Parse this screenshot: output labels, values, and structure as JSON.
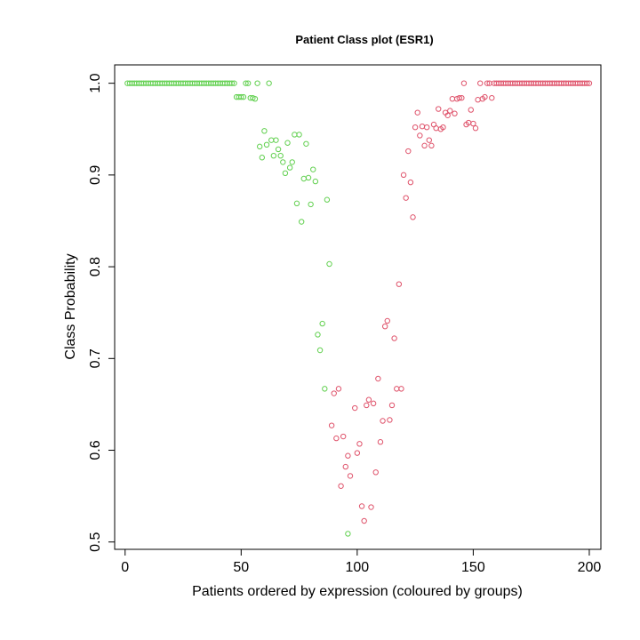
{
  "chart_data": {
    "type": "scatter",
    "title": "Patient Class plot (ESR1)",
    "xlabel": "Patients ordered by expression (coloured by groups)",
    "ylabel": "Class Probability",
    "xlim": [
      -4.5,
      205
    ],
    "ylim": [
      0.492,
      1.02
    ],
    "xticks": [
      0,
      50,
      100,
      150,
      200
    ],
    "yticks": [
      0.5,
      0.6,
      0.7,
      0.8,
      0.9,
      1.0
    ],
    "xtick_labels": [
      "0",
      "50",
      "100",
      "150",
      "200"
    ],
    "ytick_labels": [
      "0.5",
      "0.6",
      "0.7",
      "0.8",
      "0.9",
      "1.0"
    ],
    "grid": false,
    "legend": "none",
    "colors": {
      "group1": "#61D04F",
      "group2": "#DF536B"
    },
    "series": [
      {
        "color": "#61D04F",
        "points": [
          [
            1,
            1.0
          ],
          [
            2,
            1.0
          ],
          [
            3,
            1.0
          ],
          [
            4,
            1.0
          ],
          [
            5,
            1.0
          ],
          [
            6,
            1.0
          ],
          [
            7,
            1.0
          ],
          [
            8,
            1.0
          ],
          [
            9,
            1.0
          ],
          [
            10,
            1.0
          ],
          [
            11,
            1.0
          ],
          [
            12,
            1.0
          ],
          [
            13,
            1.0
          ],
          [
            14,
            1.0
          ],
          [
            15,
            1.0
          ],
          [
            16,
            1.0
          ],
          [
            17,
            1.0
          ],
          [
            18,
            1.0
          ],
          [
            19,
            1.0
          ],
          [
            20,
            1.0
          ],
          [
            21,
            1.0
          ],
          [
            22,
            1.0
          ],
          [
            23,
            1.0
          ],
          [
            24,
            1.0
          ],
          [
            25,
            1.0
          ],
          [
            26,
            1.0
          ],
          [
            27,
            1.0
          ],
          [
            28,
            1.0
          ],
          [
            29,
            1.0
          ],
          [
            30,
            1.0
          ],
          [
            31,
            1.0
          ],
          [
            32,
            1.0
          ],
          [
            33,
            1.0
          ],
          [
            34,
            1.0
          ],
          [
            35,
            1.0
          ],
          [
            36,
            1.0
          ],
          [
            37,
            1.0
          ],
          [
            38,
            1.0
          ],
          [
            39,
            1.0
          ],
          [
            40,
            1.0
          ],
          [
            41,
            1.0
          ],
          [
            42,
            1.0
          ],
          [
            43,
            1.0
          ],
          [
            44,
            1.0
          ],
          [
            45,
            1.0
          ],
          [
            46,
            1.0
          ],
          [
            47,
            1.0
          ],
          [
            48,
            0.985
          ],
          [
            49,
            0.985
          ],
          [
            50,
            0.985
          ],
          [
            51,
            0.985
          ],
          [
            52,
            1.0
          ],
          [
            53,
            1.0
          ],
          [
            54,
            0.984
          ],
          [
            55,
            0.984
          ],
          [
            56,
            0.983
          ],
          [
            57,
            1.0
          ],
          [
            58,
            0.931
          ],
          [
            59,
            0.919
          ],
          [
            60,
            0.948
          ],
          [
            61,
            0.933
          ],
          [
            62,
            1.0
          ],
          [
            63,
            0.938
          ],
          [
            64,
            0.921
          ],
          [
            65,
            0.938
          ],
          [
            66,
            0.928
          ],
          [
            67,
            0.921
          ],
          [
            68,
            0.914
          ],
          [
            69,
            0.902
          ],
          [
            70,
            0.935
          ],
          [
            71,
            0.908
          ],
          [
            72,
            0.914
          ],
          [
            73,
            0.944
          ],
          [
            74,
            0.869
          ],
          [
            75,
            0.944
          ],
          [
            76,
            0.849
          ],
          [
            77,
            0.896
          ],
          [
            78,
            0.934
          ],
          [
            79,
            0.897
          ],
          [
            80,
            0.868
          ],
          [
            81,
            0.906
          ],
          [
            82,
            0.893
          ],
          [
            83,
            0.726
          ],
          [
            84,
            0.709
          ],
          [
            85,
            0.738
          ],
          [
            86,
            0.667
          ],
          [
            87,
            0.873
          ],
          [
            88,
            0.803
          ],
          [
            96,
            0.509
          ]
        ]
      },
      {
        "color": "#DF536B",
        "points": [
          [
            89,
            0.627
          ],
          [
            90,
            0.662
          ],
          [
            91,
            0.613
          ],
          [
            92,
            0.667
          ],
          [
            93,
            0.561
          ],
          [
            94,
            0.615
          ],
          [
            95,
            0.582
          ],
          [
            96,
            0.594
          ],
          [
            97,
            0.572
          ],
          [
            99,
            0.646
          ],
          [
            100,
            0.597
          ],
          [
            101,
            0.607
          ],
          [
            102,
            0.539
          ],
          [
            103,
            0.523
          ],
          [
            104,
            0.649
          ],
          [
            105,
            0.655
          ],
          [
            106,
            0.538
          ],
          [
            107,
            0.651
          ],
          [
            108,
            0.576
          ],
          [
            109,
            0.678
          ],
          [
            110,
            0.609
          ],
          [
            111,
            0.632
          ],
          [
            112,
            0.735
          ],
          [
            113,
            0.741
          ],
          [
            114,
            0.633
          ],
          [
            115,
            0.649
          ],
          [
            116,
            0.722
          ],
          [
            117,
            0.667
          ],
          [
            118,
            0.781
          ],
          [
            119,
            0.667
          ],
          [
            120,
            0.9
          ],
          [
            121,
            0.875
          ],
          [
            122,
            0.926
          ],
          [
            123,
            0.892
          ],
          [
            124,
            0.854
          ],
          [
            125,
            0.952
          ],
          [
            126,
            0.968
          ],
          [
            127,
            0.943
          ],
          [
            128,
            0.953
          ],
          [
            129,
            0.932
          ],
          [
            130,
            0.952
          ],
          [
            131,
            0.938
          ],
          [
            132,
            0.932
          ],
          [
            133,
            0.955
          ],
          [
            134,
            0.951
          ],
          [
            135,
            0.972
          ],
          [
            136,
            0.95
          ],
          [
            137,
            0.952
          ],
          [
            138,
            0.968
          ],
          [
            139,
            0.965
          ],
          [
            140,
            0.97
          ],
          [
            141,
            0.983
          ],
          [
            142,
            0.967
          ],
          [
            143,
            0.983
          ],
          [
            144,
            0.984
          ],
          [
            145,
            0.984
          ],
          [
            146,
            1.0
          ],
          [
            147,
            0.955
          ],
          [
            148,
            0.957
          ],
          [
            149,
            0.971
          ],
          [
            150,
            0.956
          ],
          [
            151,
            0.951
          ],
          [
            152,
            0.982
          ],
          [
            153,
            1.0
          ],
          [
            154,
            0.983
          ],
          [
            155,
            0.985
          ],
          [
            156,
            1.0
          ],
          [
            157,
            1.0
          ],
          [
            158,
            0.984
          ],
          [
            159,
            1.0
          ],
          [
            160,
            1.0
          ],
          [
            161,
            1.0
          ],
          [
            162,
            1.0
          ],
          [
            163,
            1.0
          ],
          [
            164,
            1.0
          ],
          [
            165,
            1.0
          ],
          [
            166,
            1.0
          ],
          [
            167,
            1.0
          ],
          [
            168,
            1.0
          ],
          [
            169,
            1.0
          ],
          [
            170,
            1.0
          ],
          [
            171,
            1.0
          ],
          [
            172,
            1.0
          ],
          [
            173,
            1.0
          ],
          [
            174,
            1.0
          ],
          [
            175,
            1.0
          ],
          [
            176,
            1.0
          ],
          [
            177,
            1.0
          ],
          [
            178,
            1.0
          ],
          [
            179,
            1.0
          ],
          [
            180,
            1.0
          ],
          [
            181,
            1.0
          ],
          [
            182,
            1.0
          ],
          [
            183,
            1.0
          ],
          [
            184,
            1.0
          ],
          [
            185,
            1.0
          ],
          [
            186,
            1.0
          ],
          [
            187,
            1.0
          ],
          [
            188,
            1.0
          ],
          [
            189,
            1.0
          ],
          [
            190,
            1.0
          ],
          [
            191,
            1.0
          ],
          [
            192,
            1.0
          ],
          [
            193,
            1.0
          ],
          [
            194,
            1.0
          ],
          [
            195,
            1.0
          ],
          [
            196,
            1.0
          ],
          [
            197,
            1.0
          ],
          [
            198,
            1.0
          ],
          [
            199,
            1.0
          ],
          [
            200,
            1.0
          ]
        ]
      }
    ]
  }
}
